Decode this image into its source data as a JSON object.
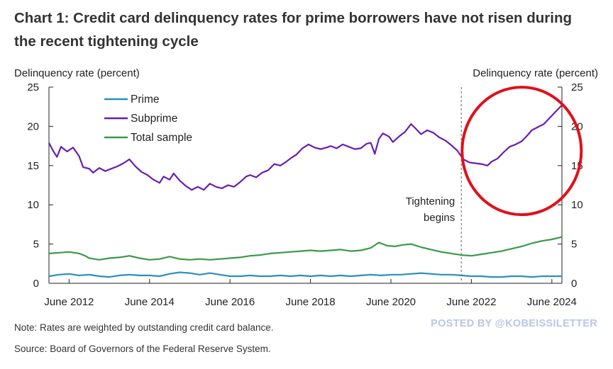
{
  "header": {
    "title": "Chart 1: Credit card delinquency rates for prime borrowers have not risen during the recent tightening cycle"
  },
  "footer": {
    "note": "Note: Rates are weighted by outstanding credit card balance.",
    "source": "Source: Board of Governors of the Federal Reserve System."
  },
  "watermark": "POSTED BY @KOBEISSILETTER",
  "chart_data": {
    "type": "line",
    "title": "Credit card delinquency rates for prime borrowers have not risen during the recent tightening cycle",
    "ylabel_left": "Delinquency rate (percent)",
    "ylabel_right": "Delinquency rate (percent)",
    "xlabel": "",
    "xlim": [
      2012.0,
      2024.75
    ],
    "ylim": [
      0,
      25
    ],
    "y_ticks": [
      "0",
      "5",
      "10",
      "15",
      "20",
      "25"
    ],
    "x_ticks": [
      {
        "label": "June 2012",
        "x": 2012.5
      },
      {
        "label": "June 2014",
        "x": 2014.5
      },
      {
        "label": "June 2016",
        "x": 2016.5
      },
      {
        "label": "June 2018",
        "x": 2018.5
      },
      {
        "label": "June 2020",
        "x": 2020.5
      },
      {
        "label": "June 2022",
        "x": 2022.5
      },
      {
        "label": "June 2024",
        "x": 2024.5
      }
    ],
    "annotation": {
      "text_line1": "Tightening",
      "text_line2": "begins",
      "x": 2022.25
    },
    "highlight_circle": {
      "x_center": 2023.75,
      "y_center": 17.5
    },
    "legend": {
      "position": "top-left",
      "entries": [
        "Prime",
        "Subprime",
        "Total sample"
      ]
    },
    "series": [
      {
        "name": "Prime",
        "color": "#2a8fbd",
        "points": [
          [
            2012.0,
            0.9
          ],
          [
            2012.25,
            1.1
          ],
          [
            2012.5,
            1.2
          ],
          [
            2012.75,
            1.0
          ],
          [
            2013.0,
            1.1
          ],
          [
            2013.25,
            0.9
          ],
          [
            2013.5,
            0.8
          ],
          [
            2013.75,
            1.0
          ],
          [
            2014.0,
            1.1
          ],
          [
            2014.25,
            1.0
          ],
          [
            2014.5,
            1.0
          ],
          [
            2014.75,
            0.9
          ],
          [
            2015.0,
            1.2
          ],
          [
            2015.25,
            1.4
          ],
          [
            2015.5,
            1.3
          ],
          [
            2015.75,
            1.1
          ],
          [
            2016.0,
            1.3
          ],
          [
            2016.25,
            1.1
          ],
          [
            2016.5,
            0.9
          ],
          [
            2016.75,
            0.9
          ],
          [
            2017.0,
            1.0
          ],
          [
            2017.25,
            0.9
          ],
          [
            2017.5,
            0.9
          ],
          [
            2017.75,
            1.0
          ],
          [
            2018.0,
            0.9
          ],
          [
            2018.25,
            1.0
          ],
          [
            2018.5,
            0.9
          ],
          [
            2018.75,
            1.0
          ],
          [
            2019.0,
            0.9
          ],
          [
            2019.25,
            1.0
          ],
          [
            2019.5,
            0.9
          ],
          [
            2019.75,
            1.0
          ],
          [
            2020.0,
            1.1
          ],
          [
            2020.25,
            1.0
          ],
          [
            2020.5,
            1.1
          ],
          [
            2020.75,
            1.1
          ],
          [
            2021.0,
            1.2
          ],
          [
            2021.25,
            1.3
          ],
          [
            2021.5,
            1.2
          ],
          [
            2021.75,
            1.1
          ],
          [
            2022.0,
            1.1
          ],
          [
            2022.25,
            1.0
          ],
          [
            2022.5,
            0.9
          ],
          [
            2022.75,
            0.9
          ],
          [
            2023.0,
            0.8
          ],
          [
            2023.25,
            0.8
          ],
          [
            2023.5,
            0.9
          ],
          [
            2023.75,
            0.9
          ],
          [
            2024.0,
            0.8
          ],
          [
            2024.25,
            0.9
          ],
          [
            2024.5,
            0.9
          ],
          [
            2024.75,
            0.9
          ]
        ]
      },
      {
        "name": "Subprime",
        "color": "#6a1db0",
        "points": [
          [
            2012.0,
            17.9
          ],
          [
            2012.1,
            16.9
          ],
          [
            2012.2,
            16.1
          ],
          [
            2012.3,
            17.4
          ],
          [
            2012.45,
            16.8
          ],
          [
            2012.6,
            17.3
          ],
          [
            2012.75,
            16.2
          ],
          [
            2012.85,
            14.8
          ],
          [
            2013.0,
            14.6
          ],
          [
            2013.1,
            14.1
          ],
          [
            2013.25,
            14.7
          ],
          [
            2013.4,
            14.3
          ],
          [
            2013.55,
            14.6
          ],
          [
            2013.7,
            14.9
          ],
          [
            2013.85,
            15.3
          ],
          [
            2014.0,
            15.8
          ],
          [
            2014.15,
            14.9
          ],
          [
            2014.3,
            14.2
          ],
          [
            2014.45,
            13.8
          ],
          [
            2014.6,
            13.2
          ],
          [
            2014.75,
            12.8
          ],
          [
            2014.85,
            13.6
          ],
          [
            2015.0,
            13.2
          ],
          [
            2015.1,
            14.0
          ],
          [
            2015.25,
            13.1
          ],
          [
            2015.4,
            12.4
          ],
          [
            2015.55,
            11.9
          ],
          [
            2015.7,
            12.3
          ],
          [
            2015.85,
            11.9
          ],
          [
            2016.0,
            12.7
          ],
          [
            2016.15,
            12.3
          ],
          [
            2016.3,
            12.1
          ],
          [
            2016.45,
            12.5
          ],
          [
            2016.6,
            12.3
          ],
          [
            2016.75,
            12.9
          ],
          [
            2016.9,
            13.6
          ],
          [
            2017.0,
            13.8
          ],
          [
            2017.15,
            13.5
          ],
          [
            2017.3,
            14.1
          ],
          [
            2017.45,
            14.4
          ],
          [
            2017.6,
            15.2
          ],
          [
            2017.75,
            15.0
          ],
          [
            2017.9,
            15.5
          ],
          [
            2018.0,
            15.9
          ],
          [
            2018.15,
            16.4
          ],
          [
            2018.3,
            17.2
          ],
          [
            2018.45,
            17.7
          ],
          [
            2018.6,
            17.3
          ],
          [
            2018.75,
            17.1
          ],
          [
            2018.9,
            17.3
          ],
          [
            2019.0,
            17.5
          ],
          [
            2019.15,
            17.2
          ],
          [
            2019.3,
            17.7
          ],
          [
            2019.45,
            17.4
          ],
          [
            2019.6,
            17.1
          ],
          [
            2019.75,
            17.2
          ],
          [
            2019.9,
            17.8
          ],
          [
            2020.0,
            17.9
          ],
          [
            2020.1,
            16.5
          ],
          [
            2020.2,
            18.4
          ],
          [
            2020.3,
            19.1
          ],
          [
            2020.45,
            18.7
          ],
          [
            2020.55,
            18.0
          ],
          [
            2020.7,
            18.7
          ],
          [
            2020.85,
            19.3
          ],
          [
            2021.0,
            20.3
          ],
          [
            2021.1,
            19.8
          ],
          [
            2021.25,
            19.0
          ],
          [
            2021.4,
            19.5
          ],
          [
            2021.55,
            19.2
          ],
          [
            2021.7,
            18.6
          ],
          [
            2021.85,
            18.2
          ],
          [
            2022.0,
            17.6
          ],
          [
            2022.15,
            16.9
          ],
          [
            2022.3,
            15.8
          ],
          [
            2022.45,
            15.4
          ],
          [
            2022.6,
            15.3
          ],
          [
            2022.75,
            15.2
          ],
          [
            2022.9,
            15.0
          ],
          [
            2023.0,
            15.5
          ],
          [
            2023.15,
            15.9
          ],
          [
            2023.3,
            16.7
          ],
          [
            2023.45,
            17.4
          ],
          [
            2023.6,
            17.7
          ],
          [
            2023.75,
            18.1
          ],
          [
            2023.9,
            18.9
          ],
          [
            2024.0,
            19.5
          ],
          [
            2024.15,
            19.9
          ],
          [
            2024.3,
            20.3
          ],
          [
            2024.45,
            21.1
          ],
          [
            2024.6,
            21.9
          ],
          [
            2024.75,
            22.7
          ]
        ]
      },
      {
        "name": "Total sample",
        "color": "#3a9a47",
        "points": [
          [
            2012.0,
            3.8
          ],
          [
            2012.25,
            3.9
          ],
          [
            2012.5,
            4.0
          ],
          [
            2012.75,
            3.8
          ],
          [
            2012.9,
            3.5
          ],
          [
            2013.0,
            3.2
          ],
          [
            2013.25,
            3.0
          ],
          [
            2013.5,
            3.2
          ],
          [
            2013.75,
            3.3
          ],
          [
            2014.0,
            3.5
          ],
          [
            2014.25,
            3.2
          ],
          [
            2014.5,
            3.0
          ],
          [
            2014.75,
            3.1
          ],
          [
            2015.0,
            3.4
          ],
          [
            2015.25,
            3.1
          ],
          [
            2015.5,
            3.0
          ],
          [
            2015.75,
            3.1
          ],
          [
            2016.0,
            3.0
          ],
          [
            2016.25,
            3.1
          ],
          [
            2016.5,
            3.2
          ],
          [
            2016.75,
            3.3
          ],
          [
            2017.0,
            3.5
          ],
          [
            2017.25,
            3.6
          ],
          [
            2017.5,
            3.8
          ],
          [
            2017.75,
            3.9
          ],
          [
            2018.0,
            4.0
          ],
          [
            2018.25,
            4.1
          ],
          [
            2018.5,
            4.2
          ],
          [
            2018.75,
            4.1
          ],
          [
            2019.0,
            4.2
          ],
          [
            2019.25,
            4.3
          ],
          [
            2019.5,
            4.1
          ],
          [
            2019.75,
            4.2
          ],
          [
            2020.0,
            4.5
          ],
          [
            2020.2,
            5.2
          ],
          [
            2020.4,
            4.8
          ],
          [
            2020.6,
            4.7
          ],
          [
            2020.8,
            4.9
          ],
          [
            2021.0,
            5.0
          ],
          [
            2021.25,
            4.6
          ],
          [
            2021.5,
            4.3
          ],
          [
            2021.75,
            4.0
          ],
          [
            2022.0,
            3.8
          ],
          [
            2022.25,
            3.6
          ],
          [
            2022.5,
            3.5
          ],
          [
            2022.75,
            3.7
          ],
          [
            2023.0,
            3.9
          ],
          [
            2023.25,
            4.1
          ],
          [
            2023.5,
            4.4
          ],
          [
            2023.75,
            4.7
          ],
          [
            2024.0,
            5.1
          ],
          [
            2024.25,
            5.4
          ],
          [
            2024.5,
            5.6
          ],
          [
            2024.75,
            5.9
          ]
        ]
      }
    ]
  }
}
